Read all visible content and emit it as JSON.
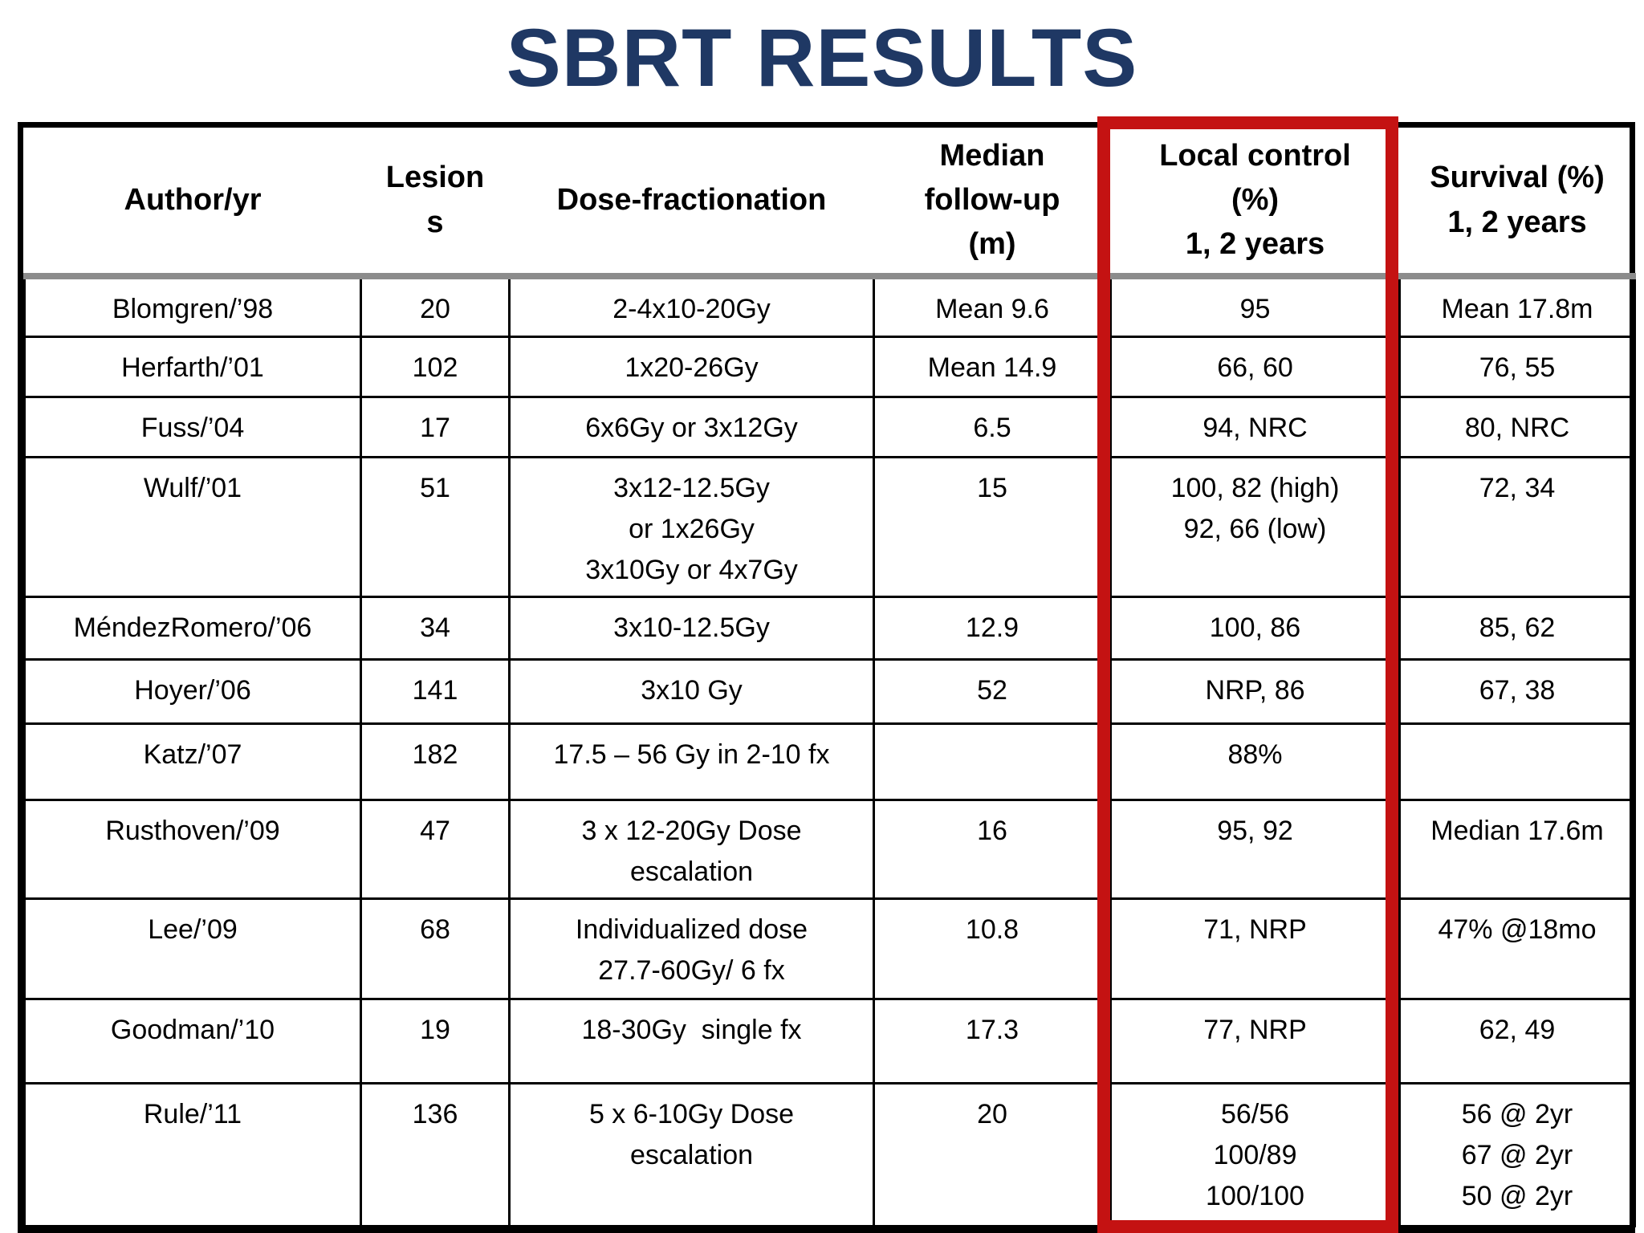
{
  "title": "SBRT RESULTS",
  "table": {
    "columns": [
      "Author/yr",
      "Lesion\ns",
      "Dose-fractionation",
      "Median\nfollow-up\n(m)",
      "Local control\n(%)\n1, 2 years",
      "Survival (%)\n1, 2 years"
    ],
    "rows": [
      [
        "Blomgren/’98",
        "20",
        "2-4x10-20Gy",
        "Mean 9.6",
        "95",
        "Mean 17.8m"
      ],
      [
        "Herfarth/’01",
        "102",
        "1x20-26Gy",
        "Mean 14.9",
        "66, 60",
        "76, 55"
      ],
      [
        "Fuss/’04",
        "17",
        "6x6Gy or 3x12Gy",
        "6.5",
        "94, NRC",
        "80, NRC"
      ],
      [
        "Wulf/’01",
        "51",
        "3x12-12.5Gy\nor 1x26Gy\n3x10Gy or 4x7Gy",
        "15",
        "100, 82 (high)\n92, 66 (low)",
        "72, 34"
      ],
      [
        "MéndezRomero/’06",
        "34",
        "3x10-12.5Gy",
        "12.9",
        "100, 86",
        "85, 62"
      ],
      [
        "Hoyer/’06",
        "141",
        "3x10 Gy",
        "52",
        "NRP, 86",
        "67, 38"
      ],
      [
        "Katz/’07",
        "182",
        "17.5 – 56 Gy in 2-10 fx",
        "",
        "88%",
        ""
      ],
      [
        "Rusthoven/’09",
        "47",
        "3 x 12-20Gy Dose\nescalation",
        "16",
        "95, 92",
        "Median 17.6m"
      ],
      [
        "Lee/’09",
        "68",
        "Individualized dose\n27.7-60Gy/ 6 fx",
        "10.8",
        "71, NRP",
        "47% @18mo"
      ],
      [
        "Goodman/’10",
        "19",
        "18-30Gy  single fx",
        "17.3",
        "77, NRP",
        "62, 49"
      ],
      [
        "Rule/’11",
        "136",
        "5 x 6-10Gy Dose\nescalation",
        "20",
        "56/56\n100/89\n100/100",
        "56 @ 2yr\n67 @ 2yr\n50 @ 2yr"
      ]
    ]
  },
  "highlight": {
    "target": "Local control (%) column",
    "color": "#c41212"
  },
  "colors": {
    "title": "#1f3864",
    "table_border": "#000000",
    "header_separator": "#8c8c8c",
    "background": "#ffffff"
  }
}
